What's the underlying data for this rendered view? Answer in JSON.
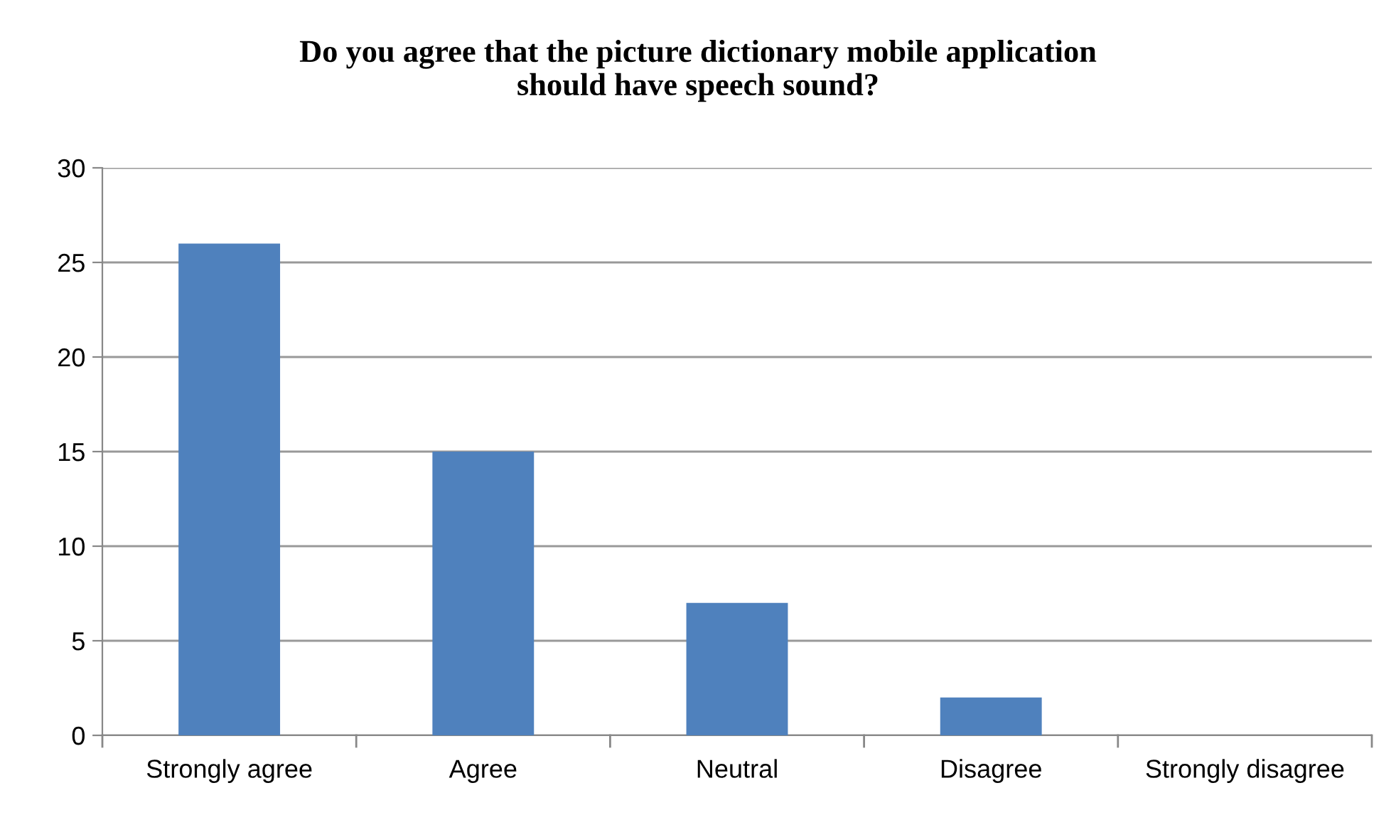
{
  "chart_data": {
    "type": "bar",
    "title": "Do you agree that the picture dictionary mobile application\nshould have speech sound?",
    "categories": [
      "Strongly agree",
      "Agree",
      "Neutral",
      "Disagree",
      "Strongly disagree"
    ],
    "values": [
      26,
      15,
      7,
      2,
      0
    ],
    "color": "#4f81bd",
    "ylim": [
      0,
      30
    ],
    "yticks": [
      0,
      5,
      10,
      15,
      20,
      25,
      30
    ],
    "grid": "y",
    "legend": false
  }
}
